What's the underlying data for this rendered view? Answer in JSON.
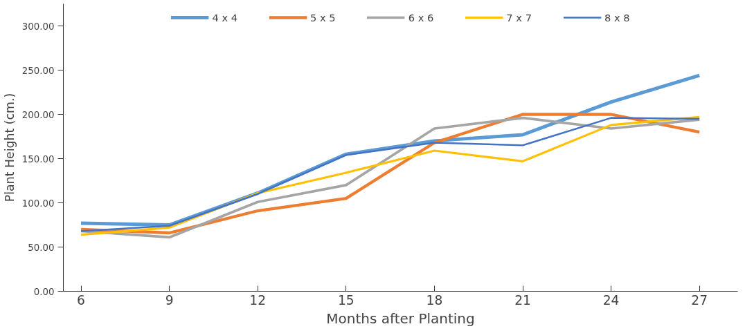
{
  "chart_data": {
    "type": "line",
    "xlabel": "Months after Planting",
    "ylabel": "Plant Height (cm.)",
    "x": [
      6,
      9,
      12,
      15,
      18,
      21,
      24,
      27
    ],
    "xlim": [
      5.4,
      28.3
    ],
    "xticks": [
      6,
      9,
      12,
      15,
      18,
      21,
      24,
      27
    ],
    "ylim": [
      0,
      325
    ],
    "yticks": [
      {
        "value": 0,
        "label": "0.00"
      },
      {
        "value": 50,
        "label": "50.00"
      },
      {
        "value": 100,
        "label": "100.00"
      },
      {
        "value": 150,
        "label": "150.00"
      },
      {
        "value": 200,
        "label": "200.00"
      },
      {
        "value": 250,
        "label": "250.00"
      },
      {
        "value": 300,
        "label": "300.00"
      }
    ],
    "grid": false,
    "legend": "top",
    "marker": "none",
    "line_style": "solid",
    "series": [
      {
        "name": "4 x 4",
        "color": "#5b9bd5",
        "values": [
          77,
          75,
          111,
          155,
          170,
          177,
          214,
          244
        ]
      },
      {
        "name": "5 x 5",
        "color": "#ed7d31",
        "values": [
          70,
          66,
          91,
          105,
          168,
          200,
          200,
          180
        ]
      },
      {
        "name": "6 x 6",
        "color": "#a5a5a5",
        "values": [
          68,
          61,
          101,
          120,
          184,
          196,
          184,
          194
        ]
      },
      {
        "name": "7 x 7",
        "color": "#ffc000",
        "values": [
          64,
          72,
          111,
          134,
          159,
          147,
          188,
          197
        ]
      },
      {
        "name": "8 x 8",
        "color": "#4472c4",
        "values": [
          68,
          74,
          110,
          154,
          168,
          165,
          196,
          195
        ]
      }
    ]
  }
}
